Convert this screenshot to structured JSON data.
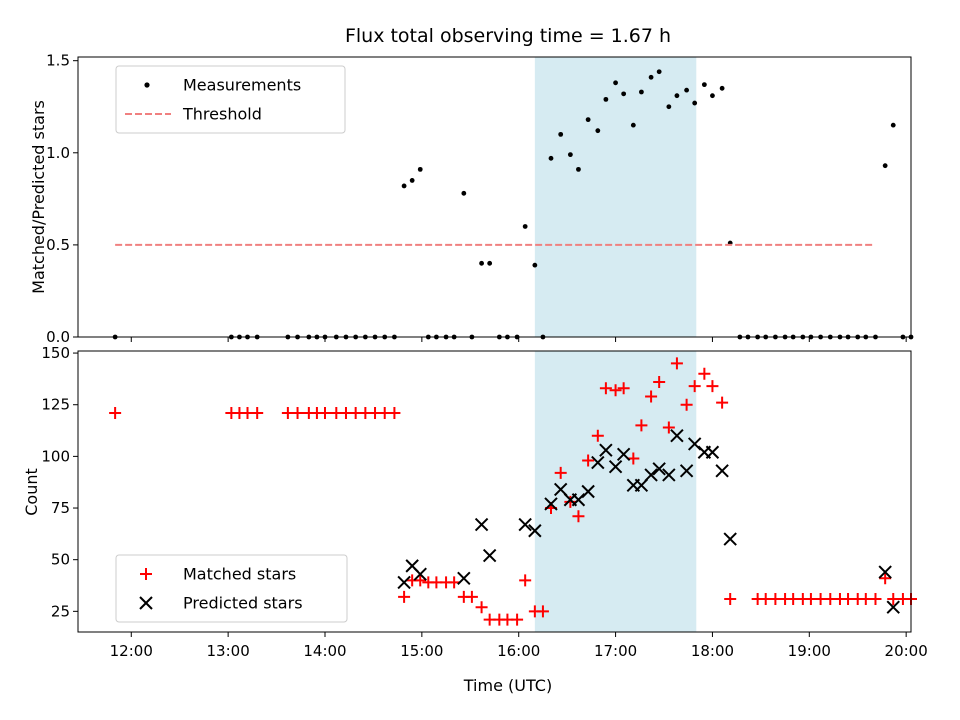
{
  "chart_data": {
    "type": "scatter",
    "title": "Flux total observing time = 1.67 h",
    "xlabel": "Time (UTC)",
    "x_tick_labels": [
      "12:00",
      "13:00",
      "14:00",
      "15:00",
      "16:00",
      "17:00",
      "18:00",
      "19:00",
      "20:00"
    ],
    "x_ticks": [
      "12:00",
      "13:00",
      "14:00",
      "15:00",
      "16:00",
      "17:00",
      "18:00",
      "19:00",
      "20:00"
    ],
    "xlim": [
      "11:27",
      "20:03"
    ],
    "shaded_interval": {
      "start": "16:10",
      "end": "17:50",
      "color": "#add8e6"
    },
    "panels": [
      {
        "name": "ratio",
        "ylabel": "Matched/Predicted stars",
        "ylim": [
          0,
          1.52
        ],
        "y_ticks": [
          0.0,
          0.5,
          1.0,
          1.5
        ],
        "y_tick_labels": [
          "0.0",
          "0.5",
          "1.0",
          "1.5"
        ],
        "legend": {
          "position": "upper left",
          "entries": [
            "Measurements",
            "Threshold"
          ]
        },
        "series": [
          {
            "name": "Measurements",
            "marker": "dot",
            "color": "#000000",
            "points": [
              [
                "11:50",
                0
              ],
              [
                "13:02",
                0
              ],
              [
                "13:07",
                0
              ],
              [
                "13:12",
                0
              ],
              [
                "13:18",
                0
              ],
              [
                "13:37",
                0
              ],
              [
                "13:43",
                0
              ],
              [
                "13:50",
                0
              ],
              [
                "13:55",
                0
              ],
              [
                "14:00",
                0
              ],
              [
                "14:07",
                0
              ],
              [
                "14:13",
                0
              ],
              [
                "14:19",
                0
              ],
              [
                "14:25",
                0
              ],
              [
                "14:31",
                0
              ],
              [
                "14:37",
                0
              ],
              [
                "14:43",
                0
              ],
              [
                "14:49",
                0.82
              ],
              [
                "14:54",
                0.85
              ],
              [
                "14:59",
                0.91
              ],
              [
                "15:04",
                0
              ],
              [
                "15:09",
                0
              ],
              [
                "15:15",
                0
              ],
              [
                "15:20",
                0
              ],
              [
                "15:26",
                0.78
              ],
              [
                "15:31",
                0
              ],
              [
                "15:37",
                0.4
              ],
              [
                "15:42",
                0.4
              ],
              [
                "15:48",
                0
              ],
              [
                "15:53",
                0
              ],
              [
                "15:59",
                0
              ],
              [
                "16:04",
                0.6
              ],
              [
                "16:10",
                0.39
              ],
              [
                "16:15",
                0
              ],
              [
                "16:20",
                0.97
              ],
              [
                "16:26",
                1.1
              ],
              [
                "16:32",
                0.99
              ],
              [
                "16:37",
                0.91
              ],
              [
                "16:43",
                1.18
              ],
              [
                "16:49",
                1.12
              ],
              [
                "16:54",
                1.29
              ],
              [
                "17:00",
                1.38
              ],
              [
                "17:05",
                1.32
              ],
              [
                "17:11",
                1.15
              ],
              [
                "17:16",
                1.33
              ],
              [
                "17:22",
                1.41
              ],
              [
                "17:27",
                1.44
              ],
              [
                "17:33",
                1.25
              ],
              [
                "17:38",
                1.31
              ],
              [
                "17:44",
                1.34
              ],
              [
                "17:49",
                1.27
              ],
              [
                "17:55",
                1.37
              ],
              [
                "18:00",
                1.31
              ],
              [
                "18:06",
                1.35
              ],
              [
                "18:11",
                0.51
              ],
              [
                "18:17",
                0
              ],
              [
                "18:22",
                0
              ],
              [
                "18:28",
                0
              ],
              [
                "18:33",
                0
              ],
              [
                "18:39",
                0
              ],
              [
                "18:45",
                0
              ],
              [
                "18:50",
                0
              ],
              [
                "18:56",
                0
              ],
              [
                "19:01",
                0
              ],
              [
                "19:07",
                0
              ],
              [
                "19:13",
                0
              ],
              [
                "19:19",
                0
              ],
              [
                "19:24",
                0
              ],
              [
                "19:30",
                0
              ],
              [
                "19:35",
                0
              ],
              [
                "19:41",
                0
              ],
              [
                "19:47",
                0.93
              ],
              [
                "19:52",
                1.15
              ],
              [
                "19:58",
                0
              ],
              [
                "20:03",
                0
              ]
            ]
          },
          {
            "name": "Threshold",
            "type": "line",
            "style": "dashed",
            "color": "#f08080",
            "points": [
              [
                "11:50",
                0.5
              ],
              [
                "19:40",
                0.5
              ]
            ]
          }
        ]
      },
      {
        "name": "counts",
        "ylabel": "Count",
        "ylim": [
          15,
          151
        ],
        "y_ticks": [
          25,
          50,
          75,
          100,
          125,
          150
        ],
        "y_tick_labels": [
          "25",
          "50",
          "75",
          "100",
          "125",
          "150"
        ],
        "legend": {
          "position": "lower left",
          "entries": [
            "Matched stars",
            "Predicted stars"
          ]
        },
        "series": [
          {
            "name": "Matched stars",
            "marker": "plus",
            "color": "#ff0000",
            "points": [
              [
                "11:50",
                121
              ],
              [
                "13:02",
                121
              ],
              [
                "13:07",
                121
              ],
              [
                "13:12",
                121
              ],
              [
                "13:18",
                121
              ],
              [
                "13:37",
                121
              ],
              [
                "13:43",
                121
              ],
              [
                "13:50",
                121
              ],
              [
                "13:55",
                121
              ],
              [
                "14:00",
                121
              ],
              [
                "14:07",
                121
              ],
              [
                "14:13",
                121
              ],
              [
                "14:19",
                121
              ],
              [
                "14:25",
                121
              ],
              [
                "14:31",
                121
              ],
              [
                "14:37",
                121
              ],
              [
                "14:43",
                121
              ],
              [
                "14:49",
                32
              ],
              [
                "14:54",
                40
              ],
              [
                "14:59",
                40
              ],
              [
                "15:04",
                39
              ],
              [
                "15:09",
                39
              ],
              [
                "15:15",
                39
              ],
              [
                "15:20",
                39
              ],
              [
                "15:26",
                32
              ],
              [
                "15:31",
                32
              ],
              [
                "15:37",
                27
              ],
              [
                "15:42",
                21
              ],
              [
                "15:48",
                21
              ],
              [
                "15:53",
                21
              ],
              [
                "15:59",
                21
              ],
              [
                "16:04",
                40
              ],
              [
                "16:10",
                25
              ],
              [
                "16:15",
                25
              ],
              [
                "16:20",
                75
              ],
              [
                "16:26",
                92
              ],
              [
                "16:32",
                78
              ],
              [
                "16:37",
                71
              ],
              [
                "16:43",
                98
              ],
              [
                "16:49",
                110
              ],
              [
                "16:54",
                133
              ],
              [
                "17:00",
                132
              ],
              [
                "17:05",
                133
              ],
              [
                "17:11",
                99
              ],
              [
                "17:16",
                115
              ],
              [
                "17:22",
                129
              ],
              [
                "17:27",
                136
              ],
              [
                "17:33",
                114
              ],
              [
                "17:38",
                145
              ],
              [
                "17:44",
                125
              ],
              [
                "17:49",
                134
              ],
              [
                "17:55",
                140
              ],
              [
                "18:00",
                134
              ],
              [
                "18:06",
                126
              ],
              [
                "18:11",
                31
              ],
              [
                "18:28",
                31
              ],
              [
                "18:33",
                31
              ],
              [
                "18:39",
                31
              ],
              [
                "18:45",
                31
              ],
              [
                "18:50",
                31
              ],
              [
                "18:56",
                31
              ],
              [
                "19:01",
                31
              ],
              [
                "19:07",
                31
              ],
              [
                "19:13",
                31
              ],
              [
                "19:19",
                31
              ],
              [
                "19:24",
                31
              ],
              [
                "19:30",
                31
              ],
              [
                "19:35",
                31
              ],
              [
                "19:41",
                31
              ],
              [
                "19:47",
                41
              ],
              [
                "19:52",
                31
              ],
              [
                "19:58",
                31
              ],
              [
                "20:03",
                31
              ]
            ]
          },
          {
            "name": "Predicted stars",
            "marker": "x",
            "color": "#000000",
            "points": [
              [
                "14:49",
                39
              ],
              [
                "14:54",
                47
              ],
              [
                "14:59",
                43
              ],
              [
                "15:26",
                41
              ],
              [
                "15:37",
                67
              ],
              [
                "15:42",
                52
              ],
              [
                "16:04",
                67
              ],
              [
                "16:10",
                64
              ],
              [
                "16:20",
                77
              ],
              [
                "16:26",
                84
              ],
              [
                "16:32",
                79
              ],
              [
                "16:37",
                79
              ],
              [
                "16:43",
                83
              ],
              [
                "16:49",
                97
              ],
              [
                "16:54",
                103
              ],
              [
                "17:00",
                95
              ],
              [
                "17:05",
                101
              ],
              [
                "17:11",
                86
              ],
              [
                "17:16",
                86
              ],
              [
                "17:22",
                91
              ],
              [
                "17:27",
                94
              ],
              [
                "17:33",
                91
              ],
              [
                "17:38",
                110
              ],
              [
                "17:44",
                93
              ],
              [
                "17:49",
                106
              ],
              [
                "17:55",
                102
              ],
              [
                "18:00",
                102
              ],
              [
                "18:06",
                93
              ],
              [
                "18:11",
                60
              ],
              [
                "19:47",
                44
              ],
              [
                "19:52",
                27
              ]
            ]
          }
        ]
      }
    ]
  }
}
